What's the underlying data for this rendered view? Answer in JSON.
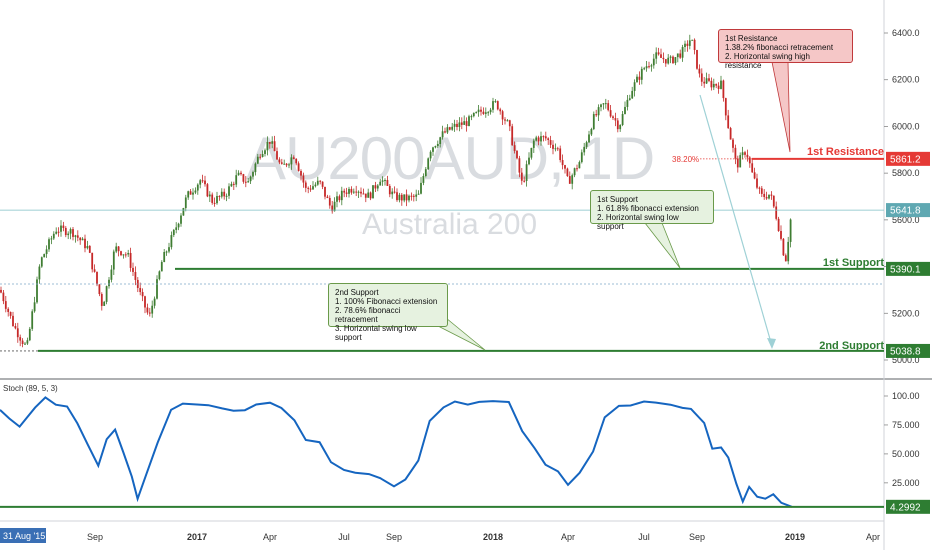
{
  "watermark": {
    "symbol": "AU200AUD, 1D",
    "name": "Australia 200"
  },
  "colors": {
    "candle_up": "#3f7d32",
    "candle_down": "#c62828",
    "support_line": "#2e7d32",
    "resistance_line": "#e53935",
    "last_price_line": "#7fbfc6",
    "stoch_line": "#1565c0",
    "projection_arrow": "#9fd1d6"
  },
  "chart_data": [
    {
      "type": "candlestick",
      "title": "AU200AUD, 1D",
      "subtitle": "Australia 200",
      "ylim": [
        4950,
        6500
      ],
      "y_ticks": [
        5000.0,
        5200.0,
        5400.0,
        5600.0,
        5800.0,
        6000.0,
        6200.0,
        6400.0
      ],
      "x_tick_labels": [
        "31 Aug '15",
        "Sep",
        "2017",
        "Apr",
        "Jul",
        "Sep",
        "2018",
        "Apr",
        "Jul",
        "Sep",
        "2019",
        "Apr"
      ],
      "close_series": [
        [
          "2016-06-01",
          5300
        ],
        [
          "2016-06-15",
          5140
        ],
        [
          "2016-06-27",
          5050
        ],
        [
          "2016-07-10",
          5420
        ],
        [
          "2016-07-25",
          5560
        ],
        [
          "2016-08-10",
          5550
        ],
        [
          "2016-08-25",
          5480
        ],
        [
          "2016-09-10",
          5230
        ],
        [
          "2016-09-25",
          5480
        ],
        [
          "2016-10-10",
          5450
        ],
        [
          "2016-10-25",
          5280
        ],
        [
          "2016-11-05",
          5180
        ],
        [
          "2016-11-20",
          5420
        ],
        [
          "2016-12-05",
          5550
        ],
        [
          "2016-12-20",
          5700
        ],
        [
          "2017-01-05",
          5770
        ],
        [
          "2017-01-20",
          5680
        ],
        [
          "2017-02-05",
          5710
        ],
        [
          "2017-02-20",
          5790
        ],
        [
          "2017-03-05",
          5760
        ],
        [
          "2017-03-20",
          5890
        ],
        [
          "2017-04-01",
          5940
        ],
        [
          "2017-04-15",
          5820
        ],
        [
          "2017-05-01",
          5880
        ],
        [
          "2017-05-15",
          5730
        ],
        [
          "2017-06-01",
          5760
        ],
        [
          "2017-06-15",
          5650
        ],
        [
          "2017-07-01",
          5720
        ],
        [
          "2017-07-15",
          5740
        ],
        [
          "2017-08-01",
          5700
        ],
        [
          "2017-08-15",
          5780
        ],
        [
          "2017-09-01",
          5700
        ],
        [
          "2017-09-15",
          5690
        ],
        [
          "2017-10-01",
          5700
        ],
        [
          "2017-10-15",
          5900
        ],
        [
          "2017-11-01",
          5970
        ],
        [
          "2017-11-15",
          6000
        ],
        [
          "2017-12-01",
          6020
        ],
        [
          "2017-12-15",
          6060
        ],
        [
          "2018-01-05",
          6100
        ],
        [
          "2018-01-20",
          6000
        ],
        [
          "2018-02-05",
          5750
        ],
        [
          "2018-02-20",
          5950
        ],
        [
          "2018-03-05",
          5950
        ],
        [
          "2018-03-20",
          5900
        ],
        [
          "2018-04-01",
          5760
        ],
        [
          "2018-04-15",
          5850
        ],
        [
          "2018-05-01",
          6030
        ],
        [
          "2018-05-15",
          6100
        ],
        [
          "2018-06-01",
          6000
        ],
        [
          "2018-06-15",
          6150
        ],
        [
          "2018-07-01",
          6250
        ],
        [
          "2018-07-15",
          6300
        ],
        [
          "2018-08-01",
          6280
        ],
        [
          "2018-08-15",
          6320
        ],
        [
          "2018-08-25",
          6380
        ],
        [
          "2018-09-05",
          6200
        ],
        [
          "2018-09-20",
          6180
        ],
        [
          "2018-10-01",
          6180
        ],
        [
          "2018-10-10",
          6000
        ],
        [
          "2018-10-20",
          5830
        ],
        [
          "2018-11-01",
          5900
        ],
        [
          "2018-11-10",
          5780
        ],
        [
          "2018-11-20",
          5700
        ],
        [
          "2018-12-01",
          5710
        ],
        [
          "2018-12-10",
          5600
        ],
        [
          "2018-12-20",
          5420
        ],
        [
          "2018-12-28",
          5642
        ]
      ],
      "levels": [
        {
          "name": "1st Resistance",
          "value": 5861.2
        },
        {
          "name": "1st Support",
          "value": 5390.1
        },
        {
          "name": "2nd Support",
          "value": 5038.8
        }
      ],
      "last_price": 5641.8,
      "fib_label": "38.20%",
      "annotations": [
        {
          "text": "1st Resistance\n1.38.2% fibonacci retracement\n2. Horizontal swing high resistance"
        },
        {
          "text": "1st Support\n1. 61.8% fibonacci extension\n2. Horizontal swing low support"
        },
        {
          "text": "2nd Support\n1. 100% Fibonacci extension\n2. 78.6% fibonacci retracement\n3. Horizontal swing low support"
        }
      ]
    },
    {
      "type": "line",
      "title": "Stoch (89, 5, 3)",
      "ylim": [
        0,
        108
      ],
      "y_ticks": [
        25.0,
        50.0,
        75.0,
        100.0
      ],
      "last_value": 4.2992,
      "series": [
        {
          "values": [
            [
              "2016-06-01",
              88
            ],
            [
              "2016-06-10",
              80
            ],
            [
              "2016-06-20",
              72
            ],
            [
              "2016-06-27",
              80
            ],
            [
              "2016-07-05",
              88
            ],
            [
              "2016-07-15",
              96
            ],
            [
              "2016-07-25",
              94
            ],
            [
              "2016-08-05",
              90
            ],
            [
              "2016-08-15",
              78
            ],
            [
              "2016-08-25",
              55
            ],
            [
              "2016-09-05",
              40
            ],
            [
              "2016-09-15",
              60
            ],
            [
              "2016-09-25",
              72
            ],
            [
              "2016-10-05",
              50
            ],
            [
              "2016-10-15",
              30
            ],
            [
              "2016-10-22",
              10
            ],
            [
              "2016-11-01",
              30
            ],
            [
              "2016-11-15",
              60
            ],
            [
              "2016-12-01",
              88
            ],
            [
              "2016-12-15",
              96
            ],
            [
              "2017-01-01",
              95
            ],
            [
              "2017-01-15",
              94
            ],
            [
              "2017-02-01",
              92
            ],
            [
              "2017-02-15",
              85
            ],
            [
              "2017-03-01",
              90
            ],
            [
              "2017-03-15",
              95
            ],
            [
              "2017-04-01",
              96
            ],
            [
              "2017-04-15",
              88
            ],
            [
              "2017-05-01",
              78
            ],
            [
              "2017-05-15",
              62
            ],
            [
              "2017-06-01",
              60
            ],
            [
              "2017-06-15",
              45
            ],
            [
              "2017-07-01",
              38
            ],
            [
              "2017-07-15",
              32
            ],
            [
              "2017-08-01",
              30
            ],
            [
              "2017-08-15",
              28
            ],
            [
              "2017-09-01",
              25
            ],
            [
              "2017-09-15",
              28
            ],
            [
              "2017-10-01",
              45
            ],
            [
              "2017-10-15",
              78
            ],
            [
              "2017-11-01",
              92
            ],
            [
              "2017-11-15",
              94
            ],
            [
              "2017-12-01",
              90
            ],
            [
              "2017-12-15",
              95
            ],
            [
              "2018-01-01",
              98
            ],
            [
              "2018-01-20",
              95
            ],
            [
              "2018-02-05",
              68
            ],
            [
              "2018-02-20",
              52
            ],
            [
              "2018-03-05",
              40
            ],
            [
              "2018-03-20",
              35
            ],
            [
              "2018-04-01",
              22
            ],
            [
              "2018-04-15",
              32
            ],
            [
              "2018-05-01",
              55
            ],
            [
              "2018-05-15",
              80
            ],
            [
              "2018-06-01",
              92
            ],
            [
              "2018-06-15",
              90
            ],
            [
              "2018-07-01",
              95
            ],
            [
              "2018-07-15",
              92
            ],
            [
              "2018-08-01",
              94
            ],
            [
              "2018-08-15",
              90
            ],
            [
              "2018-08-25",
              88
            ],
            [
              "2018-09-10",
              75
            ],
            [
              "2018-09-20",
              52
            ],
            [
              "2018-10-01",
              58
            ],
            [
              "2018-10-10",
              45
            ],
            [
              "2018-10-20",
              25
            ],
            [
              "2018-10-28",
              8
            ],
            [
              "2018-11-05",
              20
            ],
            [
              "2018-11-15",
              15
            ],
            [
              "2018-11-25",
              10
            ],
            [
              "2018-12-05",
              18
            ],
            [
              "2018-12-15",
              6
            ],
            [
              "2018-12-28",
              4.3
            ]
          ]
        }
      ]
    }
  ]
}
